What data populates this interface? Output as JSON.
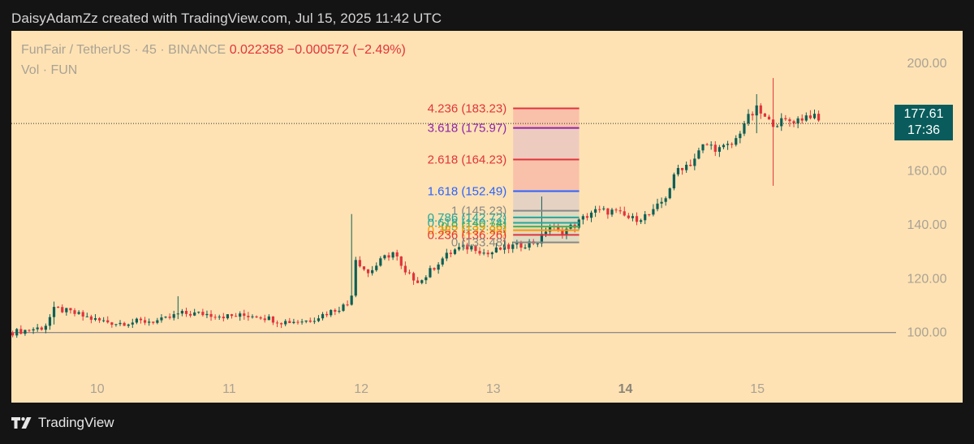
{
  "header": {
    "credit": "DaisyAdamZz created with TradingView.com, Jul 15, 2025 11:42 UTC"
  },
  "legend": {
    "symbol": "FunFair / TetherUS · 45 · BINANCE",
    "price": "0.022358",
    "change": "−0.000572 (−2.49%)",
    "volume": "Vol · FUN"
  },
  "last_price": {
    "value": "177.61",
    "countdown": "17:36"
  },
  "footer": {
    "brand": "TradingView"
  },
  "colors": {
    "background": "#ffe2b3",
    "bull": "#0d5f56",
    "bear": "#e0343d",
    "label_bg": "#0a5c5c"
  },
  "chart_data": {
    "type": "candlestick",
    "x_ticks": [
      {
        "label": "10",
        "t": 10.0
      },
      {
        "label": "11",
        "t": 11.0
      },
      {
        "label": "12",
        "t": 12.0
      },
      {
        "label": "13",
        "t": 13.0
      },
      {
        "label": "14",
        "t": 14.0,
        "bold": true
      },
      {
        "label": "15",
        "t": 15.0
      }
    ],
    "y_ticks": [
      "200.00",
      "180.00",
      "160.00",
      "140.00",
      "120.00",
      "100.00"
    ],
    "ylim": [
      74,
      212
    ],
    "xlim": [
      9.35,
      16.05
    ],
    "last_price_line": 177.61,
    "baseline": 100,
    "fib_levels": [
      {
        "ratio": "4.236",
        "value": 183.23,
        "text": "4.236 (183.23)",
        "color": "#e0343d"
      },
      {
        "ratio": "3.618",
        "value": 175.97,
        "text": "3.618 (175.97)",
        "color": "#8e24aa"
      },
      {
        "ratio": "2.618",
        "value": 164.23,
        "text": "2.618 (164.23)",
        "color": "#e0343d"
      },
      {
        "ratio": "1.618",
        "value": 152.49,
        "text": "1.618 (152.49)",
        "color": "#2962ff"
      },
      {
        "ratio": "1",
        "value": 145.23,
        "text": "1 (145.23)",
        "color": "#888888"
      },
      {
        "ratio": "0.786",
        "value": 142.72,
        "text": "0.786 (142.72)",
        "color": "#26a69a"
      },
      {
        "ratio": "0.618",
        "value": 140.74,
        "text": "0.618 (140.74)",
        "color": "#26a69a"
      },
      {
        "ratio": "0.5",
        "value": 139.36,
        "text": "0.5 (139.36)",
        "color": "#4caf50"
      },
      {
        "ratio": "0.382",
        "value": 137.98,
        "text": "0.382 (137.98)",
        "color": "#ff9800"
      },
      {
        "ratio": "0.236",
        "value": 136.26,
        "text": "0.236 (136.26)",
        "color": "#e0343d"
      },
      {
        "ratio": "0",
        "value": 133.48,
        "text": "0 (133.48)",
        "color": "#888888"
      }
    ],
    "fib_zone": {
      "t_start": 13.15,
      "t_end": 13.65
    },
    "anchors": [
      {
        "t": 9.35,
        "v": 100
      },
      {
        "t": 9.6,
        "v": 102
      },
      {
        "t": 9.68,
        "v": 109
      },
      {
        "t": 9.8,
        "v": 107.5
      },
      {
        "t": 10.0,
        "v": 104.5
      },
      {
        "t": 10.15,
        "v": 103.5
      },
      {
        "t": 10.3,
        "v": 104
      },
      {
        "t": 10.5,
        "v": 104.5
      },
      {
        "t": 10.62,
        "v": 107
      },
      {
        "t": 10.8,
        "v": 107
      },
      {
        "t": 11.0,
        "v": 106
      },
      {
        "t": 11.2,
        "v": 106.5
      },
      {
        "t": 11.4,
        "v": 104
      },
      {
        "t": 11.6,
        "v": 104.5
      },
      {
        "t": 11.8,
        "v": 108.5
      },
      {
        "t": 11.92,
        "v": 111
      },
      {
        "t": 11.95,
        "v": 128
      },
      {
        "t": 12.05,
        "v": 122
      },
      {
        "t": 12.18,
        "v": 128
      },
      {
        "t": 12.25,
        "v": 130
      },
      {
        "t": 12.32,
        "v": 122
      },
      {
        "t": 12.45,
        "v": 119
      },
      {
        "t": 12.6,
        "v": 127
      },
      {
        "t": 12.72,
        "v": 131
      },
      {
        "t": 12.85,
        "v": 132
      },
      {
        "t": 12.95,
        "v": 129
      },
      {
        "t": 13.05,
        "v": 131
      },
      {
        "t": 13.25,
        "v": 133
      },
      {
        "t": 13.35,
        "v": 134
      },
      {
        "t": 13.42,
        "v": 140
      },
      {
        "t": 13.5,
        "v": 137
      },
      {
        "t": 13.62,
        "v": 140
      },
      {
        "t": 13.75,
        "v": 145
      },
      {
        "t": 13.9,
        "v": 145
      },
      {
        "t": 14.05,
        "v": 142
      },
      {
        "t": 14.2,
        "v": 144
      },
      {
        "t": 14.3,
        "v": 150
      },
      {
        "t": 14.4,
        "v": 161
      },
      {
        "t": 14.5,
        "v": 163
      },
      {
        "t": 14.6,
        "v": 170
      },
      {
        "t": 14.72,
        "v": 168
      },
      {
        "t": 14.82,
        "v": 170
      },
      {
        "t": 14.9,
        "v": 178
      },
      {
        "t": 15.0,
        "v": 183
      },
      {
        "t": 15.08,
        "v": 178
      },
      {
        "t": 15.15,
        "v": 178
      },
      {
        "t": 15.3,
        "v": 179
      },
      {
        "t": 15.4,
        "v": 181
      },
      {
        "t": 15.48,
        "v": 177.6
      }
    ],
    "spikes": [
      {
        "t": 9.68,
        "high": 111.5,
        "low": 103
      },
      {
        "t": 10.62,
        "high": 113.5,
        "low": 105
      },
      {
        "t": 11.94,
        "high": 144,
        "low": 110
      },
      {
        "t": 13.38,
        "high": 150.5,
        "low": 133
      },
      {
        "t": 15.0,
        "high": 188.5,
        "low": 174
      },
      {
        "t": 15.13,
        "high": 194.5,
        "low": 154.5
      }
    ]
  }
}
